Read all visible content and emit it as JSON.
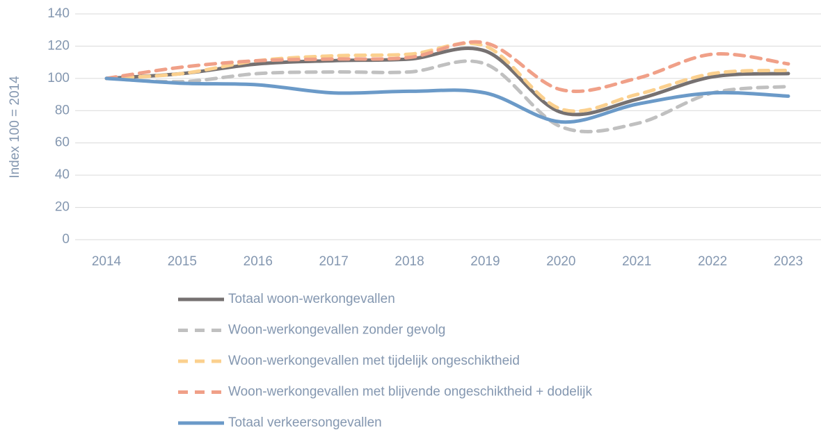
{
  "chart_data": {
    "type": "line",
    "y_label": "Index 100 = 2014",
    "categories": [
      "2014",
      "2015",
      "2016",
      "2017",
      "2018",
      "2019",
      "2020",
      "2021",
      "2022",
      "2023"
    ],
    "series": [
      {
        "name": "Totaal woon-werkongevallen",
        "color": "#767171",
        "dash": false,
        "values": [
          100,
          103,
          109,
          111,
          112,
          117,
          79,
          87,
          101,
          103
        ]
      },
      {
        "name": "Woon-werkongevallen zonder gevolg",
        "color": "#c0c0c0",
        "dash": true,
        "values": [
          100,
          98,
          103,
          104,
          104,
          109,
          70,
          72,
          91,
          95
        ]
      },
      {
        "name": "Woon-werkongevallen met tijdelijk ongeschiktheid",
        "color": "#fbd08e",
        "dash": true,
        "values": [
          100,
          103,
          111,
          114,
          115,
          120,
          81,
          90,
          103,
          105
        ]
      },
      {
        "name": "Woon-werkongevallen met blijvende ongeschiktheid + dodelijk",
        "color": "#f0a088",
        "dash": true,
        "values": [
          100,
          107,
          111,
          112,
          113,
          122,
          93,
          100,
          115,
          109
        ]
      },
      {
        "name": "Totaal verkeersongevallen",
        "color": "#6b9ac8",
        "dash": false,
        "values": [
          100,
          97,
          96,
          91,
          92,
          91,
          73,
          84,
          91,
          89
        ]
      }
    ],
    "ylim": [
      0,
      140
    ],
    "yticks": [
      0,
      20,
      40,
      60,
      80,
      100,
      120,
      140
    ],
    "grid": true,
    "legend": "bottom"
  }
}
